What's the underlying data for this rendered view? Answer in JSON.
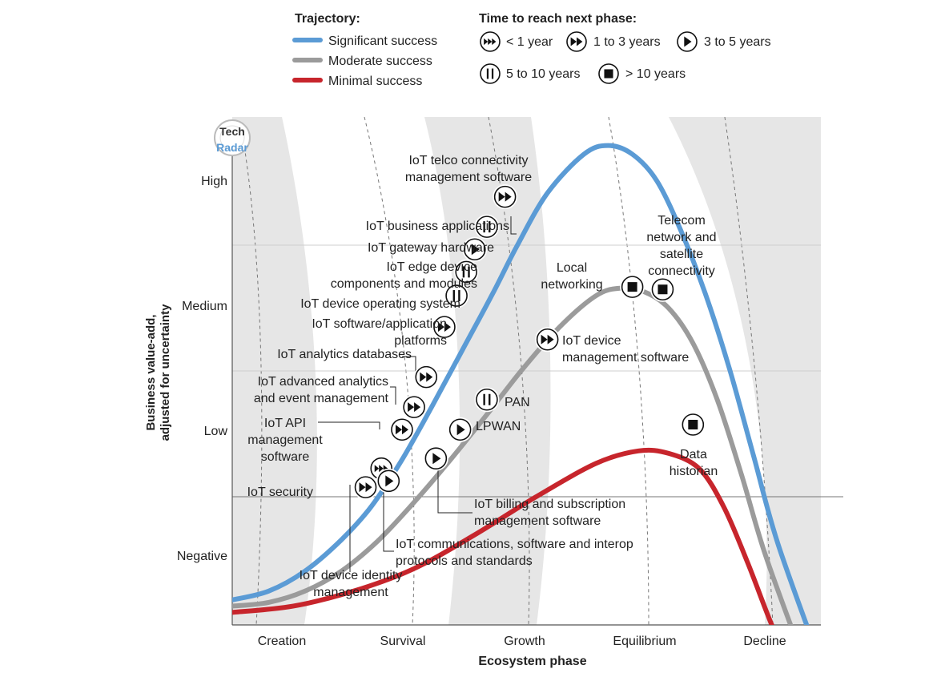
{
  "legend": {
    "trajectory_title": "Trajectory:",
    "trajectory_items": [
      {
        "label": "Significant success",
        "color": "#5b9bd5"
      },
      {
        "label": "Moderate success",
        "color": "#9b9b9b"
      },
      {
        "label": "Minimal success",
        "color": "#c7252c"
      }
    ],
    "time_title": "Time to reach next phase:",
    "time_items": [
      {
        "label": "< 1 year",
        "icon": "triple-forward-icon"
      },
      {
        "label": "1 to 3 years",
        "icon": "double-forward-icon"
      },
      {
        "label": "3 to 5 years",
        "icon": "play-icon"
      },
      {
        "label": "5 to 10 years",
        "icon": "pause-icon"
      },
      {
        "label": "> 10 years",
        "icon": "stop-icon"
      }
    ]
  },
  "logo": {
    "line1": "Tech",
    "line2": "Radar"
  },
  "chart_data": {
    "type": "line",
    "title": "",
    "xlabel": "Ecosystem phase",
    "ylabel": "Business value-add, adjusted for uncertainty",
    "categories": [
      "Creation",
      "Survival",
      "Growth",
      "Equilibrium",
      "Decline"
    ],
    "y_levels": [
      "Negative",
      "Low",
      "Medium",
      "High"
    ],
    "xlim": [
      0,
      5
    ],
    "ylim": [
      0,
      4
    ],
    "series": [
      {
        "name": "Significant success",
        "color": "#5b9bd5",
        "x": [
          0,
          0.3,
          0.6,
          0.9,
          1.15,
          1.4,
          1.65,
          1.9,
          2.15,
          2.35,
          2.6,
          2.9,
          3.1,
          3.3,
          3.5,
          3.7,
          3.9,
          4.1,
          4.3,
          4.5,
          4.85
        ],
        "y": [
          0.2,
          0.27,
          0.43,
          0.68,
          0.95,
          1.32,
          1.75,
          2.2,
          2.65,
          3.03,
          3.45,
          3.76,
          3.83,
          3.76,
          3.55,
          3.15,
          2.65,
          2.05,
          1.35,
          0.65,
          -0.3
        ]
      },
      {
        "name": "Moderate success",
        "color": "#9b9b9b",
        "x": [
          0,
          0.3,
          0.6,
          0.9,
          1.2,
          1.5,
          1.8,
          2.1,
          2.4,
          2.7,
          3.0,
          3.2,
          3.4,
          3.6,
          3.8,
          4.0,
          4.2,
          4.4,
          4.72
        ],
        "y": [
          0.15,
          0.18,
          0.27,
          0.43,
          0.67,
          0.98,
          1.32,
          1.68,
          2.05,
          2.38,
          2.63,
          2.69,
          2.66,
          2.53,
          2.25,
          1.8,
          1.2,
          0.55,
          -0.3
        ]
      },
      {
        "name": "Minimal success",
        "color": "#c7252c",
        "x": [
          0,
          0.5,
          1.0,
          1.5,
          2.0,
          2.5,
          3.0,
          3.35,
          3.6,
          3.85,
          4.05,
          4.25,
          4.45,
          4.6
        ],
        "y": [
          0.1,
          0.15,
          0.27,
          0.45,
          0.72,
          1.02,
          1.29,
          1.39,
          1.37,
          1.25,
          0.95,
          0.5,
          0.0,
          -0.3
        ]
      }
    ],
    "points": [
      {
        "label": "IoT telco connectivity management software",
        "series": "Significant success",
        "icon": "double-forward-icon",
        "x": 2.25,
        "y": 3.42
      },
      {
        "label": "IoT business applications",
        "series": "Significant success",
        "icon": "pause-icon",
        "x": 2.1,
        "y": 3.18
      },
      {
        "label": "IoT gateway hardware",
        "series": "Significant success",
        "icon": "play-icon",
        "x": 2.0,
        "y": 3.0
      },
      {
        "label": "IoT edge device components and modules",
        "series": "Significant success",
        "icon": "pause-icon",
        "x": 1.93,
        "y": 2.82
      },
      {
        "label": "IoT device operating system",
        "series": "Significant success",
        "icon": "pause-icon",
        "x": 1.85,
        "y": 2.63
      },
      {
        "label": "IoT software/application platforms",
        "series": "Significant success",
        "icon": "double-forward-icon",
        "x": 1.75,
        "y": 2.38
      },
      {
        "label": "IoT analytics databases",
        "series": "Significant success",
        "icon": "double-forward-icon",
        "x": 1.6,
        "y": 1.98
      },
      {
        "label": "IoT advanced analytics and event management",
        "series": "Significant success",
        "icon": "double-forward-icon",
        "x": 1.5,
        "y": 1.74
      },
      {
        "label": "IoT API management software",
        "series": "Significant success",
        "icon": "double-forward-icon",
        "x": 1.4,
        "y": 1.56
      },
      {
        "label": "IoT device identity management",
        "series": "Significant success",
        "icon": "triple-forward-icon",
        "x": 1.23,
        "y": 1.25
      },
      {
        "label": "IoT security",
        "series": "Significant success",
        "icon": "double-forward-icon",
        "x": 1.1,
        "y": 1.1
      },
      {
        "label": "IoT device management software",
        "series": "Moderate success",
        "icon": "double-forward-icon",
        "x": 2.6,
        "y": 2.28
      },
      {
        "label": "PAN",
        "series": "Moderate success",
        "icon": "pause-icon",
        "x": 2.1,
        "y": 1.8
      },
      {
        "label": "LPWAN",
        "series": "Moderate success",
        "icon": "play-icon",
        "x": 1.88,
        "y": 1.56
      },
      {
        "label": "IoT billing and subscription management software",
        "series": "Moderate success",
        "icon": "play-icon",
        "x": 1.68,
        "y": 1.33
      },
      {
        "label": "IoT communications, software and interop protocols and standards",
        "series": "Moderate success",
        "icon": "play-icon",
        "x": 1.29,
        "y": 1.15
      },
      {
        "label": "Local networking",
        "series": "Moderate success",
        "icon": "stop-icon",
        "x": 3.3,
        "y": 2.7
      },
      {
        "label": "Telecom network and satellite connectivity",
        "series": "Moderate success",
        "icon": "stop-icon",
        "x": 3.55,
        "y": 2.68
      },
      {
        "label": "Data historian",
        "series": "Minimal success",
        "icon": "stop-icon",
        "x": 3.8,
        "y": 1.6
      }
    ],
    "annotations": [
      {
        "lines": [
          "IoT telco connectivity",
          "management software"
        ]
      },
      {
        "lines": [
          "IoT business applications"
        ]
      },
      {
        "lines": [
          "IoT gateway hardware"
        ]
      },
      {
        "lines": [
          "IoT edge device",
          "components and modules"
        ]
      },
      {
        "lines": [
          "IoT device operating system"
        ]
      },
      {
        "lines": [
          "IoT software/application",
          "platforms"
        ]
      },
      {
        "lines": [
          "IoT analytics databases"
        ]
      },
      {
        "lines": [
          "IoT advanced analytics",
          "and event management"
        ]
      },
      {
        "lines": [
          "IoT API",
          "management",
          "software"
        ]
      },
      {
        "lines": [
          "IoT device identity",
          "management"
        ]
      },
      {
        "lines": [
          "IoT security"
        ]
      },
      {
        "lines": [
          "IoT device",
          "management software"
        ]
      },
      {
        "lines": [
          "PAN"
        ]
      },
      {
        "lines": [
          "LPWAN"
        ]
      },
      {
        "lines": [
          "IoT billing and subscription",
          "management software"
        ]
      },
      {
        "lines": [
          "IoT communications, software and interop",
          "protocols and standards"
        ]
      },
      {
        "lines": [
          "Local",
          "networking"
        ]
      },
      {
        "lines": [
          "Telecom",
          "network and",
          "satellite",
          "connectivity"
        ]
      },
      {
        "lines": [
          "Data",
          "historian"
        ]
      }
    ]
  }
}
